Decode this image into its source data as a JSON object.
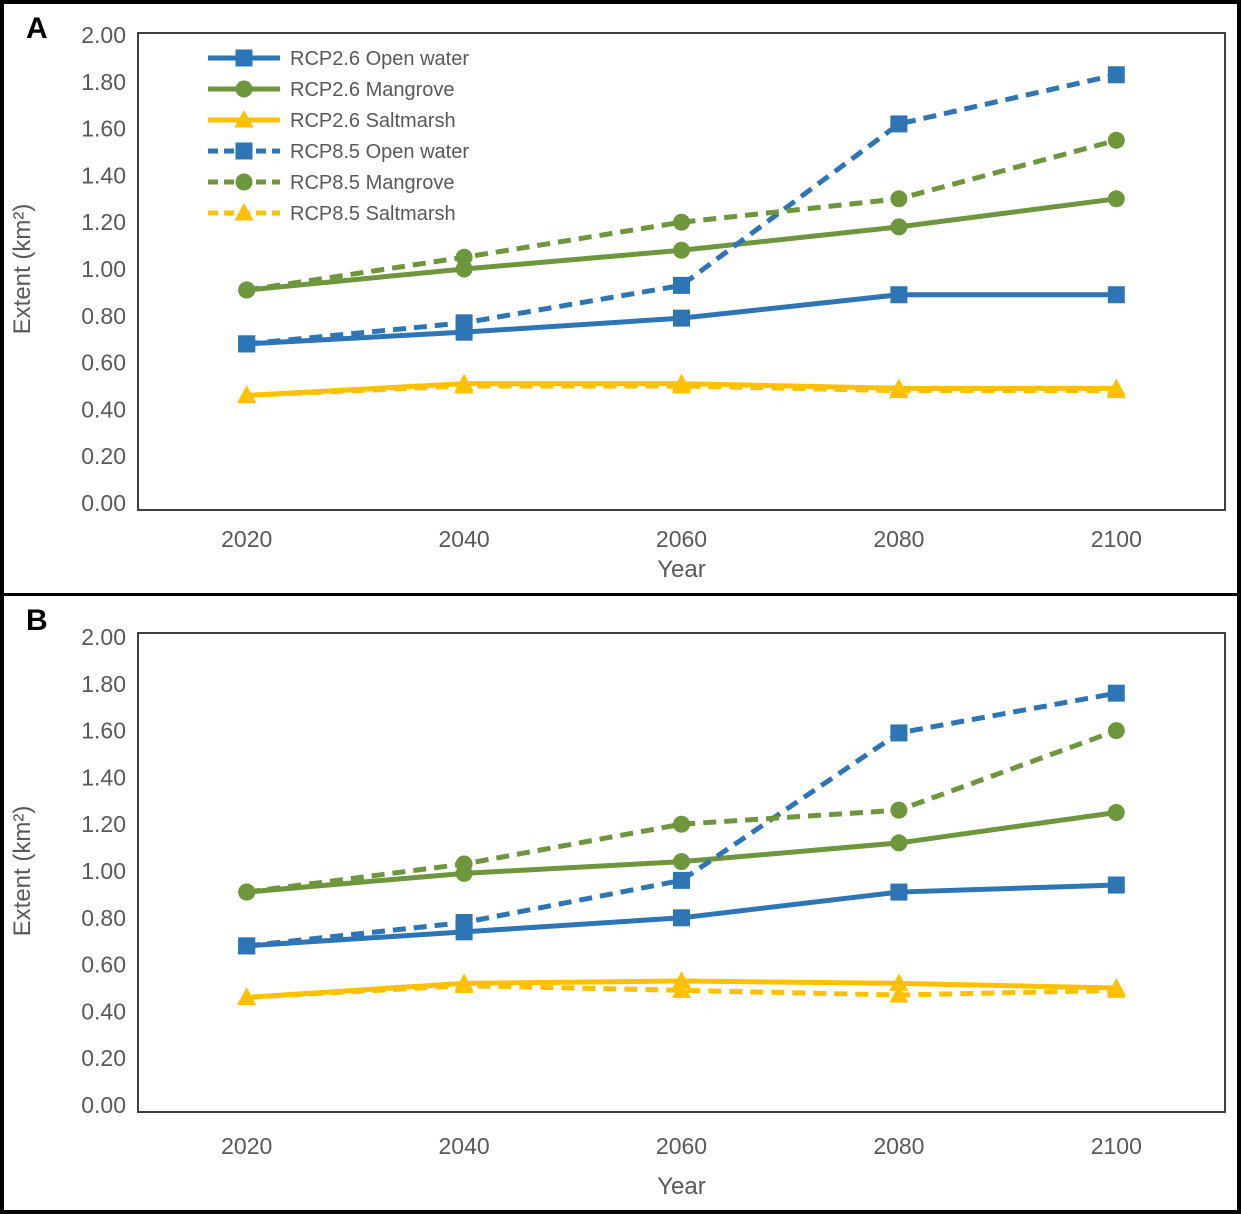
{
  "figure": {
    "background": "#ffffff",
    "border_color": "#000000",
    "text_color": "#595959",
    "plot_border_color": "#404040"
  },
  "chart_data": [
    {
      "type": "line",
      "panel_label": "A",
      "title": "",
      "xlabel": "Year",
      "ylabel": "Extent (km²)",
      "x_categories": [
        "2020",
        "2040",
        "2060",
        "2080",
        "2100"
      ],
      "ylim": [
        0.0,
        2.0
      ],
      "ytick_step": 0.2,
      "ytick_labels": [
        "0.00",
        "0.20",
        "0.40",
        "0.60",
        "0.80",
        "1.00",
        "1.20",
        "1.40",
        "1.60",
        "1.80",
        "2.00"
      ],
      "grid": false,
      "legend_visible": true,
      "legend_position": "top-left-inside",
      "series": [
        {
          "name": "RCP2.6 Open water",
          "color": "#2E75B6",
          "dash": "solid",
          "marker": "square",
          "values": [
            0.68,
            0.73,
            0.79,
            0.89,
            0.89
          ]
        },
        {
          "name": "RCP2.6 Mangrove",
          "color": "#6E963C",
          "dash": "solid",
          "marker": "circle",
          "values": [
            0.91,
            1.0,
            1.08,
            1.18,
            1.3
          ]
        },
        {
          "name": "RCP2.6 Saltmarsh",
          "color": "#FFC000",
          "dash": "solid",
          "marker": "triangle",
          "values": [
            0.46,
            0.51,
            0.51,
            0.49,
            0.49
          ]
        },
        {
          "name": "RCP8.5 Open water",
          "color": "#2E75B6",
          "dash": "dashed",
          "marker": "square",
          "values": [
            0.68,
            0.77,
            0.93,
            1.62,
            1.83
          ]
        },
        {
          "name": "RCP8.5 Mangrove",
          "color": "#6E963C",
          "dash": "dashed",
          "marker": "circle",
          "values": [
            0.91,
            1.05,
            1.2,
            1.3,
            1.55
          ]
        },
        {
          "name": "RCP8.5 Saltmarsh",
          "color": "#FFC000",
          "dash": "dashed",
          "marker": "triangle",
          "values": [
            0.46,
            0.5,
            0.5,
            0.48,
            0.48
          ]
        }
      ]
    },
    {
      "type": "line",
      "panel_label": "B",
      "title": "",
      "xlabel": "Year",
      "ylabel": "Extent (km²)",
      "x_categories": [
        "2020",
        "2040",
        "2060",
        "2080",
        "2100"
      ],
      "ylim": [
        0.0,
        2.0
      ],
      "ytick_step": 0.2,
      "ytick_labels": [
        "0.00",
        "0.20",
        "0.40",
        "0.60",
        "0.80",
        "1.00",
        "1.20",
        "1.40",
        "1.60",
        "1.80",
        "2.00"
      ],
      "grid": false,
      "legend_visible": false,
      "legend_position": "none",
      "series": [
        {
          "name": "RCP2.6 Open water",
          "color": "#2E75B6",
          "dash": "solid",
          "marker": "square",
          "values": [
            0.68,
            0.74,
            0.8,
            0.91,
            0.94
          ]
        },
        {
          "name": "RCP2.6 Mangrove",
          "color": "#6E963C",
          "dash": "solid",
          "marker": "circle",
          "values": [
            0.91,
            0.99,
            1.04,
            1.12,
            1.25
          ]
        },
        {
          "name": "RCP2.6 Saltmarsh",
          "color": "#FFC000",
          "dash": "solid",
          "marker": "triangle",
          "values": [
            0.46,
            0.52,
            0.53,
            0.52,
            0.5
          ]
        },
        {
          "name": "RCP8.5 Open water",
          "color": "#2E75B6",
          "dash": "dashed",
          "marker": "square",
          "values": [
            0.68,
            0.78,
            0.96,
            1.59,
            1.76
          ]
        },
        {
          "name": "RCP8.5 Mangrove",
          "color": "#6E963C",
          "dash": "dashed",
          "marker": "circle",
          "values": [
            0.91,
            1.03,
            1.2,
            1.26,
            1.6
          ]
        },
        {
          "name": "RCP8.5 Saltmarsh",
          "color": "#FFC000",
          "dash": "dashed",
          "marker": "triangle",
          "values": [
            0.46,
            0.51,
            0.49,
            0.47,
            0.49
          ]
        }
      ]
    }
  ]
}
